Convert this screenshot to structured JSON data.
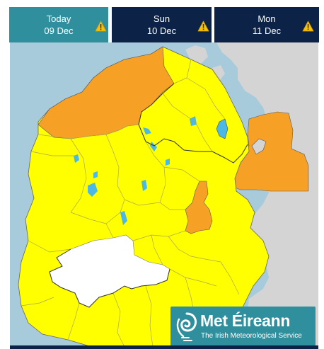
{
  "tabs": [
    {
      "day": "Today",
      "date": "09 Dec",
      "warning_icon": "warning-triangle-icon",
      "background": "#2f8f9d",
      "selected": true
    },
    {
      "day": "Sun",
      "date": "10 Dec",
      "warning_icon": "warning-triangle-icon",
      "background": "#0c2347",
      "selected": false
    },
    {
      "day": "Mon",
      "date": "11 Dec",
      "warning_icon": "warning-triangle-icon",
      "background": "#0c2347",
      "selected": false
    }
  ],
  "colors": {
    "sea": "#a7cbdb",
    "other_land": "#d4d4d4",
    "warning_yellow": "#ffff00",
    "warning_orange": "#f6a125",
    "no_warning": "#ffffff",
    "lake": "#4bb8e6",
    "logo_background": "#2f8f9d",
    "icon_yellow": "#f3c20a"
  },
  "map": {
    "legend_levels": [
      "yellow",
      "orange",
      "no-warning"
    ]
  },
  "logo": {
    "title": "Met Éireann",
    "subtitle": "The Irish Meteorological Service",
    "icon": "met-eireann-swirl-icon"
  }
}
